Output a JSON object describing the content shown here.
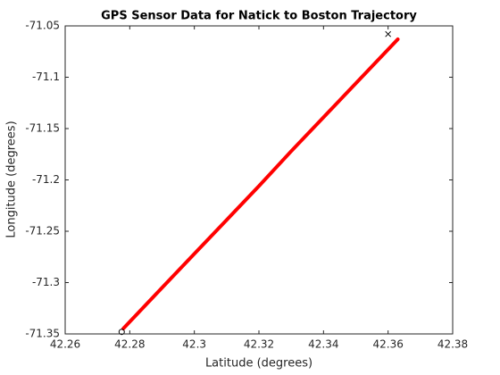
{
  "chart_data": {
    "type": "line",
    "title": "GPS Sensor Data for Natick to Boston Trajectory",
    "xlabel": "Latitude (degrees)",
    "ylabel": "Longitude (degrees)",
    "x": [
      42.278,
      42.29,
      42.3,
      42.31,
      42.32,
      42.33,
      42.34,
      42.35,
      42.363
    ],
    "series": [
      {
        "color": "#ff0000",
        "values": [
          -71.3448,
          -71.305,
          -71.272,
          -71.239,
          -71.206,
          -71.172,
          -71.139,
          -71.106,
          -71.063
        ]
      }
    ],
    "markers": [
      {
        "x": 42.2775,
        "y": -71.348,
        "marker": "o",
        "color": "#000000"
      },
      {
        "x": 42.36,
        "y": -71.058,
        "marker": "x",
        "color": "#000000"
      }
    ],
    "xlim": [
      42.26,
      42.38
    ],
    "xticks": [
      42.26,
      42.28,
      42.3,
      42.32,
      42.34,
      42.36,
      42.38
    ],
    "ylim": [
      -71.35,
      -71.05
    ],
    "yticks": [
      -71.35,
      -71.3,
      -71.25,
      -71.2,
      -71.15,
      -71.1,
      -71.05
    ]
  }
}
